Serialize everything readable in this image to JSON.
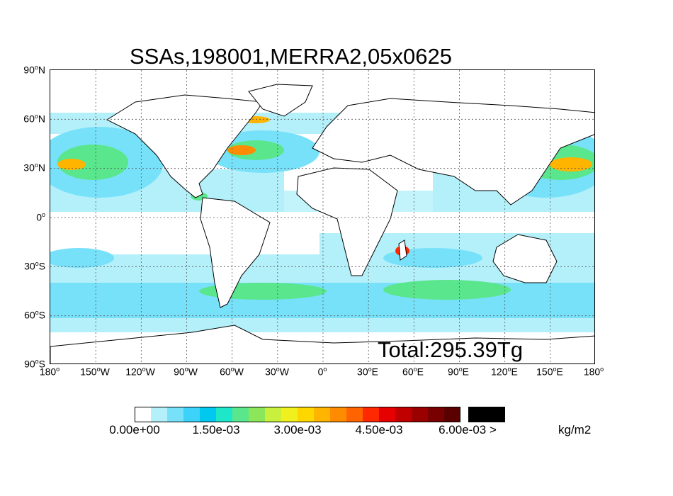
{
  "title": "SSAs,198001,MERRA2,05x0625",
  "total_label": "Total:295.39Tg",
  "units": "kg/m2",
  "lat_labels": [
    {
      "deg": "90",
      "hemi": "N"
    },
    {
      "deg": "60",
      "hemi": "N"
    },
    {
      "deg": "30",
      "hemi": "N"
    },
    {
      "deg": "0",
      "hemi": ""
    },
    {
      "deg": "30",
      "hemi": "S"
    },
    {
      "deg": "60",
      "hemi": "S"
    },
    {
      "deg": "90",
      "hemi": "S"
    }
  ],
  "lon_labels": [
    {
      "deg": "180",
      "hemi": ""
    },
    {
      "deg": "150",
      "hemi": "W"
    },
    {
      "deg": "120",
      "hemi": "W"
    },
    {
      "deg": "90",
      "hemi": "W"
    },
    {
      "deg": "60",
      "hemi": "W"
    },
    {
      "deg": "30",
      "hemi": "W"
    },
    {
      "deg": "0",
      "hemi": ""
    },
    {
      "deg": "30",
      "hemi": "E"
    },
    {
      "deg": "60",
      "hemi": "E"
    },
    {
      "deg": "90",
      "hemi": "E"
    },
    {
      "deg": "120",
      "hemi": "E"
    },
    {
      "deg": "150",
      "hemi": "E"
    },
    {
      "deg": "180",
      "hemi": ""
    }
  ],
  "colorbar": {
    "colors": [
      "#ffffff",
      "#b4f0fa",
      "#78e1fa",
      "#3cd2fa",
      "#00c8ef",
      "#1ee6c8",
      "#5ae68c",
      "#8ce65a",
      "#c8f03c",
      "#f0f01e",
      "#ffd700",
      "#ffb400",
      "#ff8c00",
      "#ff6400",
      "#ff2800",
      "#e60000",
      "#c00000",
      "#9a0000",
      "#780000",
      "#5a0000"
    ],
    "over_color": "#000000",
    "tick_labels": [
      "0.00e+00",
      "1.50e-03",
      "3.00e-03",
      "4.50e-03",
      "6.00e-03 >"
    ]
  }
}
